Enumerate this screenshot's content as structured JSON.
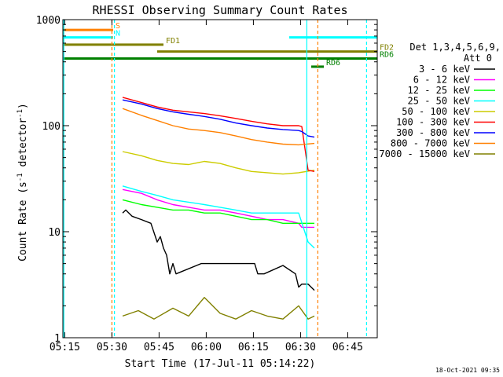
{
  "chart_data": {
    "type": "line",
    "title": "RHESSI Observing Summary Count Rates",
    "xlabel": "Start Time (17-Jul-11 05:14:22)",
    "ylabel_main": "Count Rate (s",
    "ylabel_sup1": "-1",
    "ylabel_mid": " detector",
    "ylabel_sup2": "-1",
    "ylabel_end": ")",
    "xlim_minutes": [
      0,
      100
    ],
    "ylim": [
      1,
      1000
    ],
    "yscale": "log",
    "x_ticks": [
      {
        "label": "05:15",
        "minute": 0.6
      },
      {
        "label": "05:30",
        "minute": 15.6
      },
      {
        "label": "05:45",
        "minute": 30.6
      },
      {
        "label": "06:00",
        "minute": 45.6
      },
      {
        "label": "06:15",
        "minute": 60.6
      },
      {
        "label": "06:30",
        "minute": 75.6
      },
      {
        "label": "06:45",
        "minute": 90.6
      }
    ],
    "y_ticks": [
      {
        "label": "1",
        "value": 1
      },
      {
        "label": "10",
        "value": 10
      },
      {
        "label": "100",
        "value": 100
      },
      {
        "label": "1000",
        "value": 1000
      }
    ],
    "legend": {
      "position": "right",
      "title_line1": "Det 1,3,4,5,6,9,",
      "title_line2": "Att 0",
      "entries": [
        {
          "label": "3 - 6 keV",
          "color": "#000000"
        },
        {
          "label": "6 - 12 keV",
          "color": "#ff00ff"
        },
        {
          "label": "12 - 25 keV",
          "color": "#00ff00"
        },
        {
          "label": "25 - 50 keV",
          "color": "#00ffff"
        },
        {
          "label": "50 - 100 keV",
          "color": "#cccc00"
        },
        {
          "label": "100 - 300 keV",
          "color": "#ff0000"
        },
        {
          "label": "300 - 800 keV",
          "color": "#0000ff"
        },
        {
          "label": "800 - 7000 keV",
          "color": "#ff8000"
        },
        {
          "label": "7000 - 15000 keV",
          "color": "#808000"
        }
      ]
    },
    "series": [
      {
        "name": "3 - 6 keV",
        "color": "#000000",
        "x": [
          19,
          20,
          22,
          25,
          28,
          30,
          31,
          32,
          33,
          34,
          35,
          36,
          44,
          50,
          55,
          61,
          62,
          64,
          70,
          74,
          75,
          76,
          78,
          80
        ],
        "y": [
          15,
          16,
          14,
          13,
          12,
          8,
          9,
          7,
          6,
          4,
          5,
          4,
          5,
          5,
          5,
          5,
          4,
          4,
          4.8,
          4,
          3,
          3.2,
          3.2,
          2.8
        ]
      },
      {
        "name": "6 - 12 keV",
        "color": "#ff00ff",
        "x": [
          19,
          25,
          30,
          35,
          40,
          45,
          50,
          55,
          60,
          65,
          70,
          75,
          76,
          78,
          80
        ],
        "y": [
          25,
          23,
          20,
          18,
          17,
          16,
          16,
          15,
          14,
          13,
          13,
          12,
          11,
          11,
          11
        ]
      },
      {
        "name": "12 - 25 keV",
        "color": "#00ff00",
        "x": [
          19,
          25,
          30,
          35,
          40,
          45,
          50,
          55,
          60,
          65,
          70,
          75,
          80
        ],
        "y": [
          20,
          18,
          17,
          16,
          16,
          15,
          15,
          14,
          13,
          13,
          12,
          12,
          12
        ]
      },
      {
        "name": "25 - 50 keV",
        "color": "#00ffff",
        "x": [
          19,
          25,
          30,
          35,
          40,
          45,
          50,
          55,
          60,
          65,
          70,
          75,
          78,
          80
        ],
        "y": [
          27,
          24,
          22,
          20,
          19,
          18,
          17,
          16,
          15,
          15,
          15,
          15,
          8,
          7
        ]
      },
      {
        "name": "50 - 100 keV",
        "color": "#cccc00",
        "x": [
          19,
          25,
          30,
          35,
          40,
          45,
          50,
          55,
          60,
          65,
          70,
          75,
          80
        ],
        "y": [
          57,
          52,
          47,
          44,
          43,
          46,
          44,
          40,
          37,
          36,
          35,
          36,
          38
        ]
      },
      {
        "name": "100 - 300 keV",
        "color": "#ff0000",
        "x": [
          19,
          25,
          30,
          35,
          40,
          45,
          50,
          55,
          60,
          65,
          70,
          75,
          76,
          78,
          80
        ],
        "y": [
          185,
          165,
          150,
          140,
          135,
          130,
          124,
          117,
          110,
          104,
          100,
          100,
          98,
          38,
          37
        ]
      },
      {
        "name": "300 - 800 keV",
        "color": "#0000ff",
        "x": [
          19,
          25,
          30,
          35,
          40,
          45,
          50,
          55,
          60,
          65,
          70,
          75,
          76,
          78,
          80
        ],
        "y": [
          175,
          160,
          145,
          135,
          128,
          122,
          115,
          106,
          100,
          95,
          92,
          90,
          88,
          80,
          78
        ]
      },
      {
        "name": "800 - 7000 keV",
        "color": "#ff8000",
        "x": [
          19,
          25,
          30,
          35,
          40,
          45,
          50,
          55,
          60,
          65,
          70,
          75,
          80
        ],
        "y": [
          145,
          125,
          112,
          100,
          93,
          90,
          86,
          80,
          74,
          70,
          67,
          66,
          68
        ]
      },
      {
        "name": "7000 - 15000 keV",
        "color": "#808000",
        "x": [
          19,
          24,
          29,
          35,
          40,
          45,
          50,
          55,
          60,
          65,
          70,
          75,
          78,
          80
        ],
        "y": [
          1.6,
          1.8,
          1.5,
          1.9,
          1.6,
          2.4,
          1.7,
          1.5,
          1.8,
          1.6,
          1.5,
          2.0,
          1.5,
          1.6
        ]
      }
    ],
    "flags": [
      {
        "label": "S",
        "color": "#ff8000",
        "x_start": 0,
        "x_end": 16,
        "y": 800
      },
      {
        "label": "N",
        "color": "#00ffff",
        "x_start": 0,
        "x_end": 16,
        "y": 680
      },
      {
        "label": "FD1",
        "color": "#808000",
        "x_start": 0,
        "x_end": 32,
        "y": 580
      },
      {
        "label": "FD2",
        "color": "#808000",
        "x_start": 30,
        "x_end": 100,
        "y": 500
      },
      {
        "label": "",
        "color": "#00ffff",
        "x_start": 72,
        "x_end": 100,
        "y": 680
      },
      {
        "label": "RD6",
        "color": "#008000",
        "x_start": 0,
        "x_end": 100,
        "y": 430
      },
      {
        "label": "RD6",
        "color": "#008000",
        "x_start": 79,
        "x_end": 83,
        "y": 360
      }
    ],
    "vlines": [
      {
        "color": "#00ffff",
        "x": 0.3,
        "style": "solid"
      },
      {
        "color": "#00ffff",
        "x": 16.4,
        "style": "dashed"
      },
      {
        "color": "#ff8000",
        "x": 15.6,
        "style": "dashed"
      },
      {
        "color": "#00ffff",
        "x": 77.6,
        "style": "solid"
      },
      {
        "color": "#ff8000",
        "x": 81.1,
        "style": "dashed"
      },
      {
        "color": "#00ffff",
        "x": 96.6,
        "style": "dashed"
      }
    ]
  },
  "footer": {
    "timestamp": "18-Oct-2021 09:35"
  }
}
